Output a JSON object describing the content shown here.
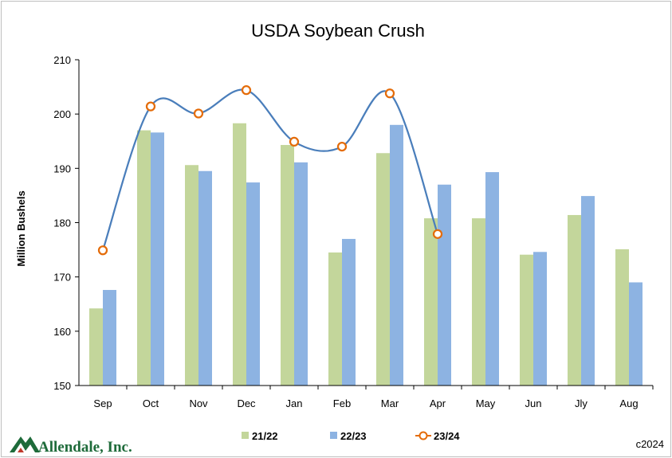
{
  "chart_data": {
    "type": "bar",
    "title": "USDA Soybean Crush",
    "xlabel": "",
    "ylabel": "Million Bushels",
    "ylim": [
      150,
      210
    ],
    "yticks": [
      150,
      160,
      170,
      180,
      190,
      200,
      210
    ],
    "categories": [
      "Sep",
      "Oct",
      "Nov",
      "Dec",
      "Jan",
      "Feb",
      "Mar",
      "Apr",
      "May",
      "Jun",
      "Jly",
      "Aug"
    ],
    "grid": false,
    "legend_position": "bottom",
    "series": [
      {
        "name": "21/22",
        "type": "bar",
        "color": "#c3d69b",
        "values": [
          164.2,
          197.0,
          190.6,
          198.3,
          194.3,
          174.5,
          192.8,
          180.8,
          180.8,
          174.1,
          181.4,
          175.1
        ]
      },
      {
        "name": "22/23",
        "type": "bar",
        "color": "#8db3e2",
        "values": [
          167.6,
          196.6,
          189.5,
          187.4,
          191.1,
          177.0,
          198.0,
          187.0,
          189.3,
          174.6,
          184.9,
          169.0
        ]
      },
      {
        "name": "23/24",
        "type": "line",
        "smooth": true,
        "color": "#4a7ebb",
        "marker_color": "#e46c0a",
        "values": [
          174.9,
          201.4,
          200.1,
          204.4,
          194.9,
          194.0,
          203.8,
          177.9,
          null,
          null,
          null,
          null
        ]
      }
    ]
  },
  "footer": {
    "logo_text": "Allendale, Inc.",
    "copyright": "c2024"
  }
}
